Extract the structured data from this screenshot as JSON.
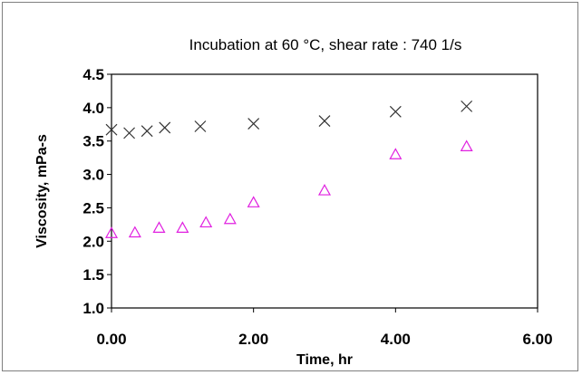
{
  "chart_data": {
    "type": "scatter",
    "title": "Incubation at 60 °C, shear rate : 740 1/s",
    "xlabel": "Time, hr",
    "ylabel": "Viscosity, mPa-s",
    "xlim": [
      0,
      6
    ],
    "ylim": [
      1.0,
      4.5
    ],
    "x_ticks": [
      "0.00",
      "2.00",
      "4.00",
      "6.00"
    ],
    "y_ticks": [
      "1.0",
      "1.5",
      "2.0",
      "2.5",
      "3.0",
      "3.5",
      "4.0",
      "4.5"
    ],
    "grid": false,
    "legend": "none",
    "series": [
      {
        "marker": "x-cross",
        "color": "#333333",
        "x": [
          0.0,
          0.25,
          0.5,
          0.75,
          1.25,
          2.0,
          3.0,
          4.0,
          5.0
        ],
        "y": [
          3.67,
          3.62,
          3.65,
          3.7,
          3.72,
          3.76,
          3.8,
          3.94,
          4.02
        ]
      },
      {
        "marker": "triangle",
        "color": "#e020e0",
        "x": [
          0.0,
          0.33,
          0.67,
          1.0,
          1.33,
          1.67,
          2.0,
          3.0,
          4.0,
          5.0
        ],
        "y": [
          2.12,
          2.13,
          2.2,
          2.2,
          2.28,
          2.33,
          2.58,
          2.76,
          3.3,
          3.42
        ]
      }
    ]
  }
}
